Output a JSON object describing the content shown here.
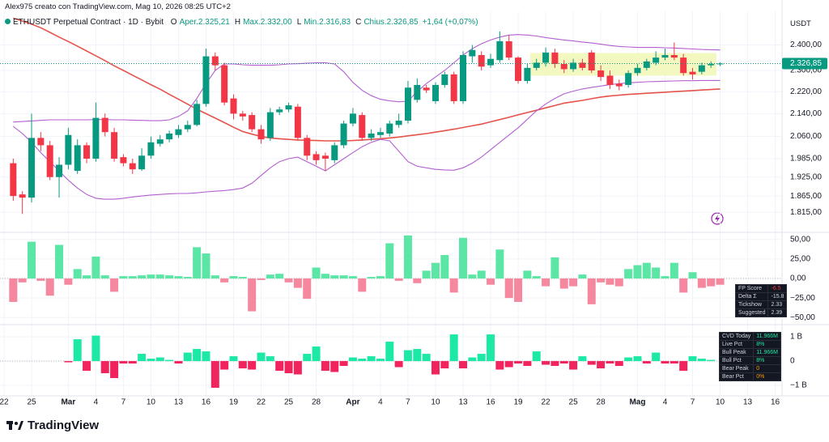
{
  "header": {
    "credit": "Alex975 creato con TradingView.com, Mag 10, 2026 08:25 UTC+2",
    "symbol": "ETHUSDT Perpetual Contract · 1D · Bybit",
    "ohlc": [
      {
        "key": "O",
        "value": "Aper.2.325,21"
      },
      {
        "key": "H",
        "value": "Max.2.332,00"
      },
      {
        "key": "L",
        "value": "Min.2.316,83"
      },
      {
        "key": "C",
        "value": "Chius.2.326,85"
      }
    ],
    "change": "+1,64 (+0,07%)",
    "currency": "USDT"
  },
  "footer": {
    "logo": "TradingView"
  },
  "chart_data": [
    {
      "type": "candlestick",
      "log_scale": true,
      "grid": true,
      "categories": [
        "22",
        null,
        null,
        "25",
        null,
        null,
        null,
        "Mar",
        null,
        null,
        "4",
        null,
        null,
        "7",
        null,
        null,
        "10",
        null,
        null,
        "13",
        null,
        null,
        "16",
        null,
        null,
        "19",
        null,
        null,
        "22",
        null,
        null,
        "25",
        null,
        null,
        "28",
        null,
        null,
        null,
        "Apr",
        null,
        null,
        "4",
        null,
        null,
        "7",
        null,
        null,
        "10",
        null,
        null,
        "13",
        null,
        null,
        "16",
        null,
        null,
        "19",
        null,
        null,
        "22",
        null,
        null,
        "25",
        null,
        null,
        "28",
        null,
        null,
        null,
        "Mag",
        null,
        null,
        "4",
        null,
        null,
        "7",
        null,
        null,
        "10",
        null,
        null,
        "13",
        null,
        null,
        "16"
      ],
      "candles": {
        "up_color": "#089981",
        "down_color": "#f23645",
        "open": [
          null,
          1970,
          1870,
          1860,
          2055,
          2030,
          1925,
          1965,
          1945,
          2030,
          1985,
          2125,
          2075,
          1990,
          1970,
          1950,
          1995,
          2035,
          2050,
          2065,
          2085,
          2100,
          2175,
          2355,
          2320,
          2195,
          2140,
          2135,
          2085,
          2055,
          2145,
          2155,
          2165,
          2055,
          2000,
          1995,
          1980,
          2030,
          2105,
          2135,
          2055,
          2065,
          2070,
          2100,
          2115,
          2190,
          2235,
          2185,
          2245,
          2285,
          2185,
          2355,
          2360,
          2320,
          2340,
          2415,
          2350,
          2260,
          2310,
          2330,
          2370,
          2325,
          2305,
          2330,
          2370,
          2300,
          2280,
          2250,
          2245,
          2290,
          2310,
          2330,
          2350,
          2360,
          2350,
          2295,
          2295,
          2320,
          2325.21,
          null,
          null,
          null,
          null,
          null,
          null
        ],
        "high": [
          null,
          1985,
          1880,
          2140,
          2075,
          2045,
          1990,
          2090,
          2050,
          2040,
          2180,
          2140,
          2090,
          2000,
          1985,
          2020,
          2060,
          2065,
          2080,
          2100,
          2115,
          2190,
          2385,
          2370,
          2330,
          2210,
          2150,
          2145,
          2100,
          2160,
          2165,
          2180,
          2175,
          2065,
          2010,
          2005,
          2040,
          2115,
          2160,
          2145,
          2085,
          2090,
          2115,
          2140,
          2260,
          2270,
          2245,
          2255,
          2295,
          2295,
          2375,
          2400,
          2375,
          2365,
          2455,
          2440,
          2355,
          2325,
          2345,
          2390,
          2385,
          2340,
          2345,
          2345,
          2380,
          2320,
          2300,
          2265,
          2300,
          2325,
          2345,
          2375,
          2385,
          2410,
          2365,
          2310,
          2330,
          2335,
          2332,
          null,
          null,
          null,
          null,
          null,
          null
        ],
        "low": [
          null,
          1850,
          1810,
          1845,
          2010,
          1915,
          1860,
          1950,
          1935,
          1970,
          1975,
          2060,
          1975,
          1960,
          1935,
          1945,
          1985,
          2025,
          2040,
          2055,
          2075,
          2095,
          2165,
          2300,
          2170,
          2120,
          2115,
          2075,
          2035,
          2045,
          2135,
          2145,
          2045,
          1980,
          1965,
          1945,
          1970,
          2020,
          2095,
          2045,
          2045,
          2055,
          2060,
          2090,
          2105,
          2180,
          2215,
          2175,
          2235,
          2175,
          2175,
          2330,
          2300,
          2310,
          2330,
          2340,
          2250,
          2250,
          2300,
          2315,
          2310,
          2290,
          2295,
          2300,
          2290,
          2260,
          2230,
          2225,
          2235,
          2280,
          2300,
          2320,
          2340,
          2340,
          2280,
          2265,
          2285,
          2310,
          2316.83,
          null,
          null,
          null,
          null,
          null,
          null
        ],
        "close": [
          null,
          1865,
          1860,
          2055,
          2030,
          1925,
          1965,
          2065,
          2030,
          1985,
          2125,
          2075,
          1985,
          1970,
          1950,
          1995,
          2040,
          2050,
          2070,
          2085,
          2100,
          2175,
          2355,
          2320,
          2180,
          2140,
          2130,
          2085,
          2050,
          2145,
          2155,
          2170,
          2055,
          1995,
          1980,
          1985,
          2030,
          2105,
          2140,
          2055,
          2070,
          2075,
          2105,
          2115,
          2235,
          2245,
          2225,
          2245,
          2285,
          2185,
          2360,
          2380,
          2315,
          2345,
          2415,
          2350,
          2260,
          2310,
          2330,
          2370,
          2325,
          2305,
          2330,
          2310,
          2300,
          2275,
          2245,
          2240,
          2290,
          2310,
          2335,
          2350,
          2360,
          2350,
          2290,
          2285,
          2320,
          2325,
          2326.85,
          null,
          null,
          null,
          null,
          null,
          null
        ]
      },
      "lines": [
        {
          "color": "#e5534b",
          "values": [
            null,
            2510,
            2498,
            2485,
            2470,
            2451,
            2432,
            2414,
            2395,
            2376,
            2357,
            2338,
            2318,
            2300,
            2282,
            2264,
            2246,
            2229,
            2210,
            2192,
            2174,
            2156,
            2140,
            2124,
            2108,
            2092,
            2077,
            2068,
            2060,
            2055,
            2052,
            2050,
            2048,
            2047,
            2046,
            2045,
            2045,
            2045,
            2046,
            2048,
            2050,
            2052,
            2055,
            2058,
            2062,
            2066,
            2070,
            2075,
            2080,
            2085,
            2091,
            2097,
            2103,
            2111,
            2119,
            2127,
            2136,
            2144,
            2152,
            2161,
            2169,
            2178,
            2183,
            2188,
            2194,
            2200,
            2204,
            2207,
            2210,
            2212,
            2214,
            2216,
            2218,
            2220,
            2222,
            2224,
            2226,
            2228,
            2230,
            null,
            null,
            null,
            null,
            null,
            null
          ]
        },
        {
          "color": "#b45fd0",
          "values": [
            null,
            2110,
            2112,
            2114,
            2116,
            2118,
            2118,
            2118,
            2118,
            2118,
            2119,
            2119,
            2118,
            2118,
            2117,
            2116,
            2115,
            2115,
            2118,
            2130,
            2150,
            2195,
            2250,
            2300,
            2325,
            2325,
            2322,
            2320,
            2320,
            2320,
            2322,
            2325,
            2326,
            2328,
            2330,
            2330,
            2325,
            2295,
            2255,
            2225,
            2205,
            2192,
            2186,
            2183,
            2185,
            2220,
            2250,
            2275,
            2300,
            2330,
            2360,
            2385,
            2405,
            2420,
            2432,
            2440,
            2442,
            2440,
            2436,
            2430,
            2425,
            2420,
            2416,
            2412,
            2408,
            2403,
            2398,
            2394,
            2392,
            2390,
            2390,
            2390,
            2389,
            2388,
            2386,
            2384,
            2382,
            2381,
            2380,
            null,
            null,
            null,
            null,
            null,
            null
          ]
        },
        {
          "color": "#b45fd0",
          "values": [
            null,
            2095,
            2070,
            2040,
            2005,
            1975,
            1945,
            1915,
            1890,
            1870,
            1858,
            1855,
            1855,
            1858,
            1862,
            1865,
            1868,
            1870,
            1872,
            1873,
            1873,
            1875,
            1878,
            1880,
            1882,
            1885,
            1890,
            1905,
            1930,
            1955,
            1975,
            1985,
            1990,
            1975,
            1960,
            1945,
            1965,
            1985,
            2005,
            2025,
            2040,
            2050,
            2045,
            2010,
            1975,
            1960,
            1955,
            1950,
            1948,
            1947,
            1955,
            1970,
            1990,
            2015,
            2040,
            2065,
            2090,
            2120,
            2150,
            2175,
            2195,
            2212,
            2222,
            2230,
            2236,
            2241,
            2246,
            2250,
            2253,
            2255,
            2257,
            2258,
            2259,
            2260,
            2261,
            2261,
            2262,
            2262,
            2262,
            null,
            null,
            null,
            null,
            null,
            null
          ]
        }
      ],
      "highlight": {
        "low": 2280,
        "high": 2368,
        "color": "#f3f8c0"
      },
      "last_price": {
        "value": 2326.85,
        "label": "2.326,85",
        "color": "#089981"
      },
      "ylim": [
        1760,
        2525
      ],
      "yticks": [
        {
          "value": 2400,
          "label": "2.400,00"
        },
        {
          "value": 2300,
          "label": "2.300,00"
        },
        {
          "value": 2220,
          "label": "2.220,00"
        },
        {
          "value": 2140,
          "label": "2.140,00"
        },
        {
          "value": 2060,
          "label": "2.060,00"
        },
        {
          "value": 1985,
          "label": "1.985,00"
        },
        {
          "value": 1925,
          "label": "1.925,00"
        },
        {
          "value": 1865,
          "label": "1.865,00"
        },
        {
          "value": 1815,
          "label": "1.815,00"
        }
      ]
    },
    {
      "type": "bar",
      "up_color": "#5ce6a6",
      "down_color": "#f5879f",
      "values": [
        null,
        -30,
        -5,
        47,
        -3,
        -22,
        43,
        -8,
        12,
        4,
        28,
        4,
        -17,
        3,
        3,
        4,
        5,
        5,
        4,
        3,
        2,
        40,
        32,
        4,
        -5,
        3,
        2,
        -42,
        -2,
        5,
        6,
        -5,
        -12,
        -26,
        14,
        6,
        4,
        4,
        3,
        -17,
        2,
        3,
        45,
        -3,
        55,
        -6,
        10,
        20,
        30,
        -18,
        52,
        5,
        10,
        -8,
        37,
        -25,
        -30,
        10,
        3,
        -10,
        27,
        -13,
        -10,
        5,
        -33,
        -5,
        -8,
        -10,
        12,
        17,
        20,
        14,
        3,
        20,
        -18,
        8,
        -12,
        -10,
        -8,
        null,
        null,
        null,
        null,
        null,
        null
      ],
      "ylim": [
        -58,
        59
      ],
      "yticks": [
        {
          "value": 50,
          "label": "50,00"
        },
        {
          "value": 25,
          "label": "25,00"
        },
        {
          "value": 0,
          "label": "0,00"
        },
        {
          "value": -25,
          "label": "−25,00"
        },
        {
          "value": -50,
          "label": "−50,00"
        }
      ],
      "table": [
        [
          "FP Score",
          "-6.5"
        ],
        [
          "Delta Σ",
          "-15.8"
        ],
        [
          "Tickshow",
          "2.33"
        ],
        [
          "Suggested",
          "2.39"
        ]
      ]
    },
    {
      "type": "bar",
      "up_color": "#1de9a6",
      "down_color": "#f2245e",
      "values": [
        null,
        null,
        null,
        null,
        null,
        null,
        null,
        -50000000.0,
        900000000.0,
        -400000000.0,
        1050000000.0,
        -500000000.0,
        -700000000.0,
        -100000000.0,
        -100000000.0,
        300000000.0,
        100000000.0,
        150000000.0,
        50000000.0,
        -100000000.0,
        350000000.0,
        500000000.0,
        400000000.0,
        -1100000000.0,
        -350000000.0,
        200000000.0,
        -300000000.0,
        -350000000.0,
        350000000.0,
        200000000.0,
        -400000000.0,
        -500000000.0,
        -550000000.0,
        300000000.0,
        600000000.0,
        -400000000.0,
        -450000000.0,
        -200000000.0,
        150000000.0,
        100000000.0,
        200000000.0,
        100000000.0,
        800000000.0,
        -250000000.0,
        450000000.0,
        500000000.0,
        300000000.0,
        -550000000.0,
        -300000000.0,
        1100000000.0,
        -300000000.0,
        150000000.0,
        300000000.0,
        1100000000.0,
        -350000000.0,
        -250000000.0,
        -100000000.0,
        -200000000.0,
        400000000.0,
        -150000000.0,
        -200000000.0,
        -100000000.0,
        -350000000.0,
        200000000.0,
        -150000000.0,
        -300000000.0,
        -100000000.0,
        -200000000.0,
        150000000.0,
        200000000.0,
        -100000000.0,
        350000000.0,
        -100000000.0,
        -100000000.0,
        -400000000.0,
        200000000.0,
        100000000.0,
        50000000.0,
        0,
        null,
        null,
        null,
        null,
        null,
        null
      ],
      "ylim": [
        -1400000000.0,
        1470000000.0
      ],
      "yticks": [
        {
          "value": 1000000000.0,
          "label": "1 B"
        },
        0,
        {
          "value": -1000000000.0,
          "label": "−1 B"
        }
      ],
      "table": [
        [
          "CVD Today",
          "11.966M"
        ],
        [
          "Live Pct",
          "8%"
        ],
        [
          "Bull Peak",
          "11.966M"
        ],
        [
          "Bull Pct",
          "8%"
        ],
        [
          "Bear Peak",
          "0"
        ],
        [
          "Bear Pct",
          "0%"
        ]
      ]
    }
  ]
}
